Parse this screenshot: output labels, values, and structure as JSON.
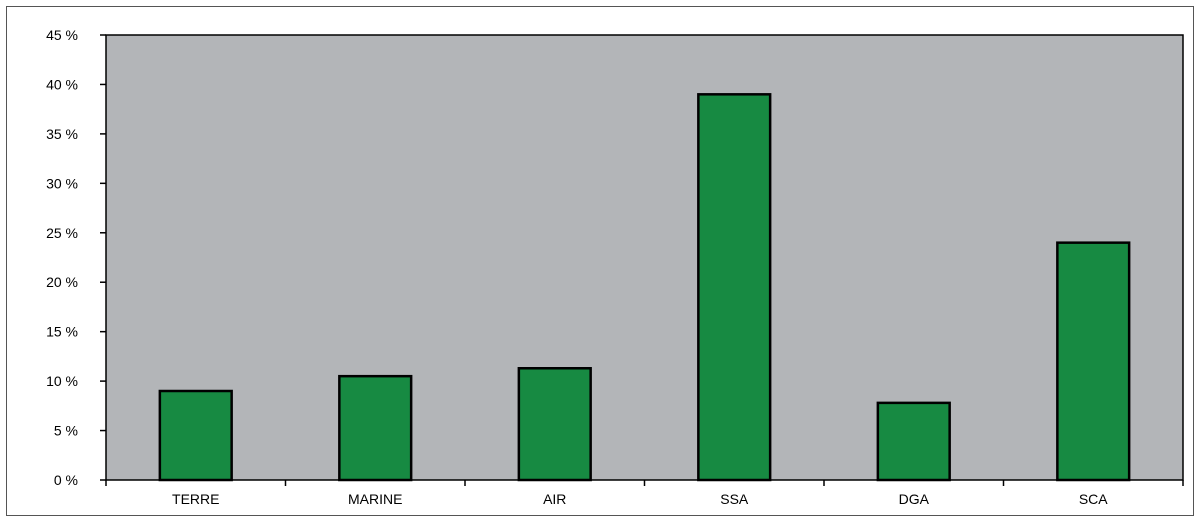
{
  "chart_data": {
    "type": "bar",
    "categories": [
      "TERRE",
      "MARINE",
      "AIR",
      "SSA",
      "DGA",
      "SCA"
    ],
    "values": [
      9,
      10.5,
      11.3,
      39,
      7.8,
      24
    ],
    "ylim": [
      0,
      45
    ],
    "ytick_step": 5,
    "ytick_labels": [
      "0 %",
      "5 %",
      "10 %",
      "15 %",
      "20 %",
      "25 %",
      "30 %",
      "35 %",
      "40 %",
      "45 %"
    ],
    "grid": false,
    "legend": "none",
    "colors": {
      "plot_background": "#b3b5b8",
      "bar_fill": "#178a42",
      "bar_stroke": "#000000",
      "frame": "#000000"
    }
  }
}
